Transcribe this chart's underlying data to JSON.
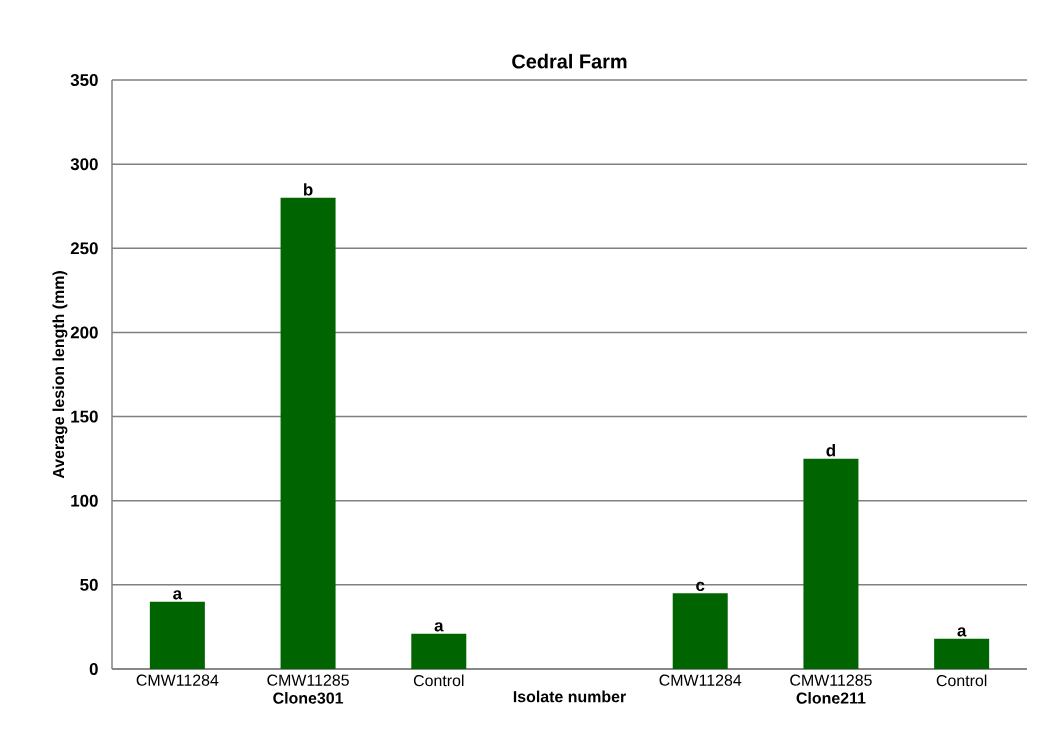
{
  "chart_data": {
    "type": "bar",
    "title": "Cedral Farm",
    "xlabel": "Isolate number",
    "ylabel": "Average lesion length (mm)",
    "categories": [
      "CMW11284",
      "CMW11285 **Clone301**",
      "Control",
      null,
      "CMW11284",
      "CMW11285 **Clone211**",
      "Control"
    ],
    "values": [
      40,
      280,
      21,
      null,
      45,
      125,
      18
    ],
    "value_labels": [
      "a",
      "b",
      "a",
      null,
      "c",
      "d",
      "a"
    ],
    "color": "#006400",
    "ylim": [
      0,
      350
    ],
    "yticks": [
      0,
      50,
      100,
      150,
      200,
      250,
      300,
      350
    ],
    "grid": "y"
  }
}
